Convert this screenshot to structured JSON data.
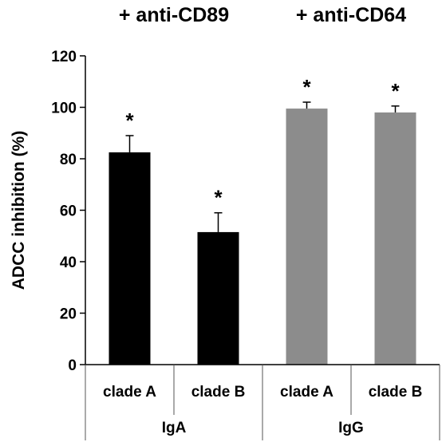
{
  "chart_data": {
    "type": "bar",
    "ylabel": "ADCC inhibition (%)",
    "ylim": [
      0,
      120
    ],
    "yticks": [
      0,
      20,
      40,
      60,
      80,
      100,
      120
    ],
    "grid": false,
    "categories": [
      "clade A",
      "clade B",
      "clade A",
      "clade B"
    ],
    "groups": [
      {
        "label": "IgA",
        "treatment_label": "+ anti-CD89",
        "color": "#000000"
      },
      {
        "label": "IgG",
        "treatment_label": "+ anti-CD64",
        "color": "#8c8c8c"
      }
    ],
    "values": [
      82.5,
      51.5,
      99.5,
      98
    ],
    "errors": [
      6.5,
      7.5,
      2.5,
      2.5
    ],
    "bar_group": [
      0,
      0,
      1,
      1
    ],
    "significance": [
      "*",
      "*",
      "*",
      "*"
    ]
  }
}
